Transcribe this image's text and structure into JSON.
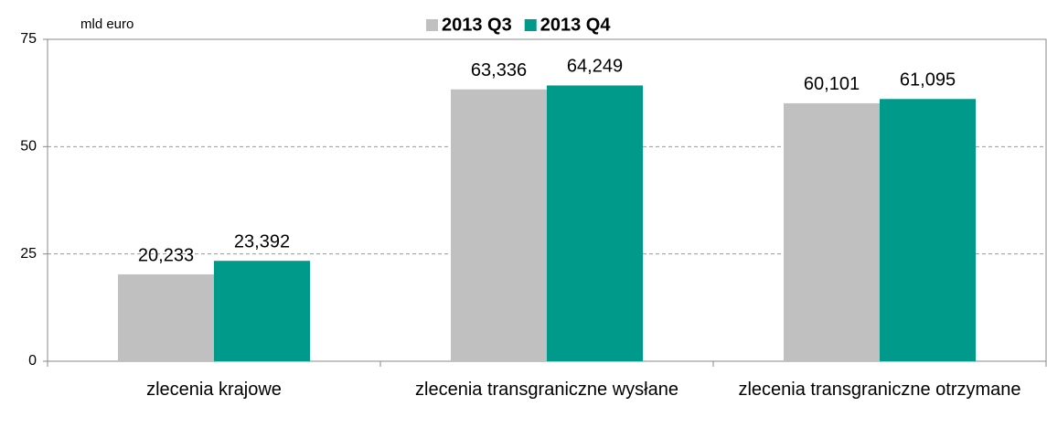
{
  "chart_data": {
    "type": "bar",
    "y_label": "mld euro",
    "categories": [
      "zlecenia krajowe",
      "zlecenia transgraniczne wysłane",
      "zlecenia transgraniczne otrzymane"
    ],
    "series": [
      {
        "name": "2013 Q3",
        "color": "#c0c0c0",
        "values": [
          20.233,
          63.336,
          60.101
        ],
        "value_labels": [
          "20,233",
          "63,336",
          "60,101"
        ]
      },
      {
        "name": "2013 Q4",
        "color": "#009a8a",
        "values": [
          23.392,
          64.249,
          61.095
        ],
        "value_labels": [
          "23,392",
          "64,249",
          "61,095"
        ]
      }
    ],
    "ylim": [
      0,
      75
    ],
    "yticks": [
      0,
      25,
      50,
      75
    ],
    "grid": true,
    "legend": "top"
  }
}
